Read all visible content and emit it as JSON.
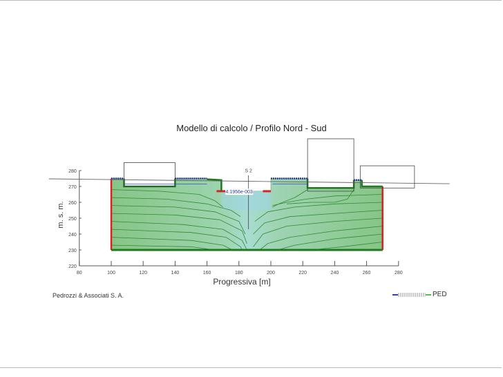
{
  "chart_data": {
    "type": "diagram",
    "title": "Modello di calcolo / Profilo Nord - Sud",
    "xlabel": "Progressiva [m]",
    "ylabel": "m. s. m.",
    "xlim": [
      80,
      280
    ],
    "ylim": [
      220,
      280
    ],
    "xticks": [
      "80",
      "100",
      "120",
      "140",
      "160",
      "180",
      "200",
      "220",
      "240",
      "260",
      "280"
    ],
    "yticks": [
      "220",
      "230",
      "240",
      "250",
      "260",
      "270",
      "280"
    ],
    "section_label": "S 2",
    "section_x": 186,
    "value_label": "4.1956e-003",
    "ground_line": [
      [
        61,
        274.8
      ],
      [
        312,
        271.7
      ]
    ],
    "soil_profile": [
      [
        100,
        275
      ],
      [
        108,
        275
      ],
      [
        108,
        270
      ],
      [
        140,
        270
      ],
      [
        140,
        275
      ],
      [
        160,
        275
      ],
      [
        160,
        274
      ],
      [
        169,
        274
      ],
      [
        169,
        267
      ],
      [
        200,
        267
      ],
      [
        200,
        275
      ],
      [
        223,
        275
      ],
      [
        223,
        269
      ],
      [
        252,
        269
      ],
      [
        252,
        274
      ],
      [
        257,
        274
      ],
      [
        257,
        270
      ],
      [
        270,
        270
      ],
      [
        270,
        230
      ],
      [
        100,
        230
      ]
    ],
    "buildings": [
      {
        "x": [
          108,
          140
        ],
        "y": [
          270,
          285
        ]
      },
      {
        "x": [
          223,
          252
        ],
        "y": [
          267,
          300
        ]
      },
      {
        "x": [
          256,
          290
        ],
        "y": [
          269,
          283
        ]
      }
    ],
    "flow_lines": [
      [
        [
          100,
          268
        ],
        [
          130,
          267
        ],
        [
          155,
          265
        ],
        [
          165,
          261
        ],
        [
          170,
          257
        ]
      ],
      [
        [
          100,
          263
        ],
        [
          135,
          262
        ],
        [
          160,
          259
        ],
        [
          175,
          255
        ],
        [
          181,
          251
        ]
      ],
      [
        [
          100,
          258
        ],
        [
          140,
          257
        ],
        [
          165,
          254
        ],
        [
          180,
          248
        ],
        [
          184,
          240
        ]
      ],
      [
        [
          100,
          253
        ],
        [
          140,
          252
        ],
        [
          168,
          249
        ],
        [
          182,
          242
        ],
        [
          185,
          234
        ]
      ],
      [
        [
          100,
          248
        ],
        [
          145,
          246
        ],
        [
          170,
          243
        ],
        [
          182,
          236
        ],
        [
          185,
          230
        ]
      ],
      [
        [
          100,
          243
        ],
        [
          150,
          241
        ],
        [
          172,
          238
        ],
        [
          181,
          232
        ],
        [
          182,
          230
        ]
      ],
      [
        [
          100,
          238
        ],
        [
          150,
          236
        ],
        [
          170,
          233
        ],
        [
          176,
          230
        ]
      ],
      [
        [
          100,
          233
        ],
        [
          150,
          232
        ],
        [
          165,
          230
        ]
      ],
      [
        [
          270,
          265
        ],
        [
          240,
          264
        ],
        [
          222,
          262
        ],
        [
          210,
          260
        ],
        [
          201,
          258
        ]
      ],
      [
        [
          270,
          260
        ],
        [
          240,
          259
        ],
        [
          215,
          257
        ],
        [
          198,
          254
        ],
        [
          190,
          248
        ]
      ],
      [
        [
          270,
          255
        ],
        [
          240,
          253
        ],
        [
          212,
          251
        ],
        [
          196,
          247
        ],
        [
          189,
          240
        ]
      ],
      [
        [
          270,
          250
        ],
        [
          240,
          248
        ],
        [
          210,
          245
        ],
        [
          195,
          240
        ],
        [
          189,
          232
        ]
      ],
      [
        [
          270,
          245
        ],
        [
          240,
          242
        ],
        [
          212,
          238
        ],
        [
          198,
          234
        ],
        [
          193,
          230
        ]
      ],
      [
        [
          270,
          240
        ],
        [
          240,
          237
        ],
        [
          215,
          233
        ],
        [
          204,
          230
        ]
      ],
      [
        [
          270,
          235
        ],
        [
          245,
          232
        ],
        [
          225,
          230
        ]
      ],
      [
        [
          223,
          268
        ],
        [
          215,
          263
        ],
        [
          205,
          259
        ],
        [
          201,
          257
        ]
      ],
      [
        [
          252,
          268
        ],
        [
          248,
          262
        ],
        [
          240,
          260
        ],
        [
          225,
          260
        ],
        [
          210,
          259
        ]
      ]
    ],
    "colors": {
      "soil": "#8cc98c",
      "excavation_water": "#9fd6e6",
      "fixed_head": "#e02020",
      "drain": "#1e7a1e",
      "seepage_face": "#2a3a9a",
      "flow_line": "#2f8a2f"
    }
  },
  "footer": {
    "company": "Pedrozzi & Associati S. A.",
    "legend_label": "PED"
  }
}
